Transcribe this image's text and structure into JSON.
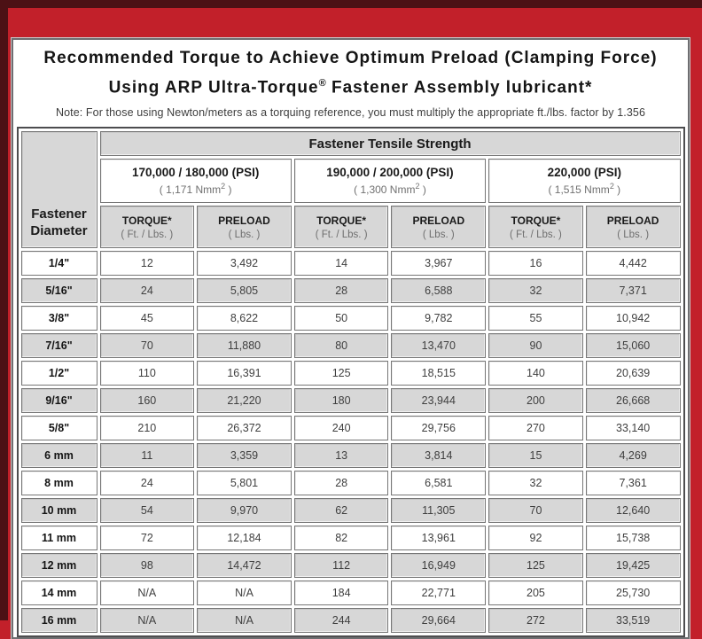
{
  "colors": {
    "frame_red": "#c2202a",
    "frame_maroon": "#4c1115",
    "cell_gray": "#d7d7d7"
  },
  "title": {
    "line1": "Recommended Torque to Achieve Optimum Preload (Clamping Force)",
    "line2_pre": "Using ARP Ultra-Torque",
    "line2_sup": "®",
    "line2_post": " Fastener Assembly lubricant*"
  },
  "note": "Note: For those using Newton/meters as a torquing reference, you must multiply the appropriate ft./lbs. factor by 1.356",
  "table": {
    "corner_header": "Fastener Diameter",
    "group_header": "Fastener Tensile Strength",
    "strength_columns": [
      {
        "psi": "170,000 / 180,000 (PSI)",
        "nmm_pre": "( 1,171 Nmm",
        "nmm_sup": "2",
        "nmm_post": " )"
      },
      {
        "psi": "190,000 / 200,000 (PSI)",
        "nmm_pre": "( 1,300 Nmm",
        "nmm_sup": "2",
        "nmm_post": " )"
      },
      {
        "psi": "220,000 (PSI)",
        "nmm_pre": "( 1,515 Nmm",
        "nmm_sup": "2",
        "nmm_post": " )"
      }
    ],
    "sub_headers": {
      "torque_label": "TORQUE*",
      "torque_unit": "( Ft. / Lbs. )",
      "preload_label": "PRELOAD",
      "preload_unit": "( Lbs. )"
    },
    "rows": [
      {
        "diameter": "1/4\"",
        "values": [
          "12",
          "3,492",
          "14",
          "3,967",
          "16",
          "4,442"
        ]
      },
      {
        "diameter": "5/16\"",
        "values": [
          "24",
          "5,805",
          "28",
          "6,588",
          "32",
          "7,371"
        ]
      },
      {
        "diameter": "3/8\"",
        "values": [
          "45",
          "8,622",
          "50",
          "9,782",
          "55",
          "10,942"
        ]
      },
      {
        "diameter": "7/16\"",
        "values": [
          "70",
          "11,880",
          "80",
          "13,470",
          "90",
          "15,060"
        ]
      },
      {
        "diameter": "1/2\"",
        "values": [
          "110",
          "16,391",
          "125",
          "18,515",
          "140",
          "20,639"
        ]
      },
      {
        "diameter": "9/16\"",
        "values": [
          "160",
          "21,220",
          "180",
          "23,944",
          "200",
          "26,668"
        ]
      },
      {
        "diameter": "5/8\"",
        "values": [
          "210",
          "26,372",
          "240",
          "29,756",
          "270",
          "33,140"
        ]
      },
      {
        "diameter": "6 mm",
        "values": [
          "11",
          "3,359",
          "13",
          "3,814",
          "15",
          "4,269"
        ]
      },
      {
        "diameter": "8 mm",
        "values": [
          "24",
          "5,801",
          "28",
          "6,581",
          "32",
          "7,361"
        ]
      },
      {
        "diameter": "10 mm",
        "values": [
          "54",
          "9,970",
          "62",
          "11,305",
          "70",
          "12,640"
        ]
      },
      {
        "diameter": "11 mm",
        "values": [
          "72",
          "12,184",
          "82",
          "13,961",
          "92",
          "15,738"
        ]
      },
      {
        "diameter": "12 mm",
        "values": [
          "98",
          "14,472",
          "112",
          "16,949",
          "125",
          "19,425"
        ]
      },
      {
        "diameter": "14 mm",
        "values": [
          "N/A",
          "N/A",
          "184",
          "22,771",
          "205",
          "25,730"
        ]
      },
      {
        "diameter": "16 mm",
        "values": [
          "N/A",
          "N/A",
          "244",
          "29,664",
          "272",
          "33,519"
        ]
      }
    ]
  }
}
